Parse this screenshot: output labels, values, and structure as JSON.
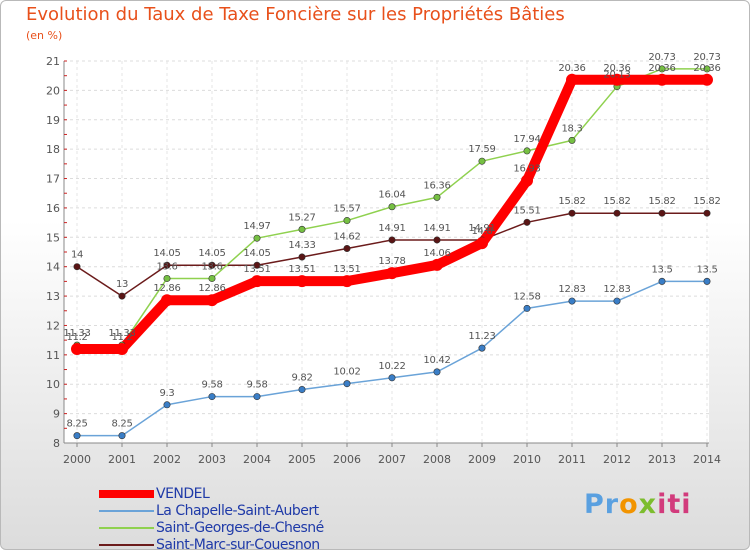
{
  "header": {
    "title": "Evolution du Taux de Taxe Foncière sur les Propriétés Bâties",
    "unit": "(en %)"
  },
  "logo": {
    "parts": [
      "Pr",
      "o",
      "x",
      "iti"
    ]
  },
  "chart_data": {
    "type": "line",
    "title": "Evolution du Taux de Taxe Foncière sur les Propriétés Bâties",
    "ylabel": "(en %)",
    "xlabel": "",
    "ylim": [
      8,
      21
    ],
    "yticks": [
      8,
      9,
      10,
      11,
      12,
      13,
      14,
      15,
      16,
      17,
      18,
      19,
      20,
      21
    ],
    "x": [
      "2000",
      "2001",
      "2002",
      "2003",
      "2004",
      "2005",
      "2006",
      "2007",
      "2008",
      "2009",
      "2010",
      "2011",
      "2012",
      "2013",
      "2014"
    ],
    "series": [
      {
        "name": "Saint-Marc-sur-Couesnon",
        "color": "#6b1b1b",
        "marker": "#5a1515",
        "values": [
          14,
          13,
          14.05,
          14.05,
          14.05,
          14.33,
          14.62,
          14.91,
          14.91,
          14.91,
          15.51,
          15.82,
          15.82,
          15.82,
          15.82
        ],
        "labels": [
          "14",
          "13",
          "14.05",
          "14.05",
          "14.05",
          "14.33",
          "14.62",
          "14.91",
          "14.91",
          "14.91",
          "15.51",
          "15.82",
          "15.82",
          "15.82",
          "15.82"
        ]
      },
      {
        "name": "La Chapelle-Saint-Aubert",
        "color": "#6aa3d8",
        "marker": "#3a7ec7",
        "values": [
          8.25,
          8.25,
          9.3,
          9.58,
          9.58,
          9.82,
          10.02,
          10.22,
          10.42,
          11.23,
          12.58,
          12.83,
          12.83,
          13.5,
          13.5
        ],
        "labels": [
          "8.25",
          "8.25",
          "9.3",
          "9.58",
          "9.58",
          "9.82",
          "10.02",
          "10.22",
          "10.42",
          "11.23",
          "12.58",
          "12.83",
          "12.83",
          "13.5",
          "13.5"
        ]
      },
      {
        "name": "Saint-Georges-de-Chesné",
        "color": "#8fd14f",
        "marker": "#76c043",
        "values": [
          11.33,
          11.33,
          13.6,
          13.6,
          14.97,
          15.27,
          15.57,
          16.04,
          16.36,
          17.59,
          17.94,
          18.3,
          20.13,
          20.73,
          20.73
        ],
        "labels": [
          "11.33",
          "11.33",
          "13.6",
          "13.6",
          "14.97",
          "15.27",
          "15.57",
          "16.04",
          "16.36",
          "17.59",
          "17.94",
          "18.3",
          "20.13",
          "20.73",
          "20.73"
        ]
      },
      {
        "name": "VENDEL",
        "color": "#ff0000",
        "marker": "#ff0000",
        "values": [
          11.2,
          11.2,
          12.86,
          12.86,
          13.51,
          13.51,
          13.51,
          13.78,
          14.06,
          14.8,
          16.93,
          20.36,
          20.36,
          20.36,
          20.36
        ],
        "labels": [
          "11.2",
          "11.2",
          "12.86",
          "12.86",
          "13.51",
          "13.51",
          "13.51",
          "13.78",
          "14.06",
          "14.8",
          "16.93",
          "20.36",
          "20.36",
          "20.36",
          "20.36"
        ]
      }
    ],
    "legend": [
      {
        "name": "VENDEL",
        "color": "#ff0000",
        "bold": true
      },
      {
        "name": "La Chapelle-Saint-Aubert",
        "color": "#6aa3d8",
        "bold": false
      },
      {
        "name": "Saint-Georges-de-Chesné",
        "color": "#8fd14f",
        "bold": false
      },
      {
        "name": "Saint-Marc-sur-Couesnon",
        "color": "#6b1b1b",
        "bold": false
      }
    ]
  }
}
